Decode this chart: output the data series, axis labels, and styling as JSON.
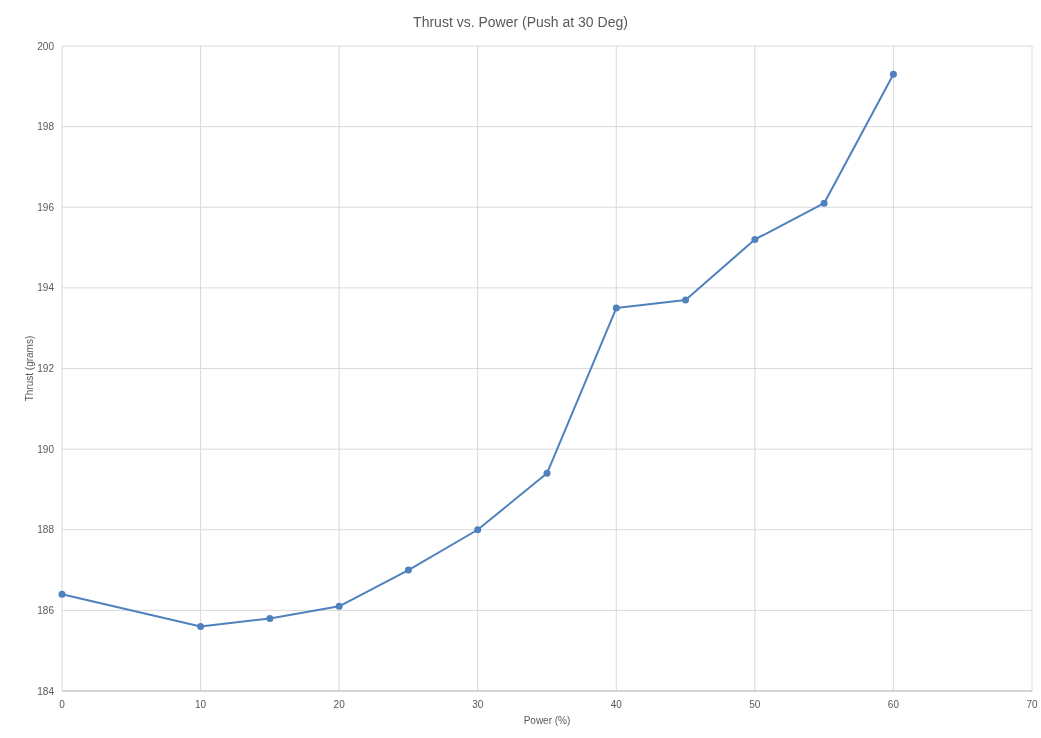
{
  "chart_data": {
    "type": "line",
    "title": "Thrust vs. Power (Push at 30 Deg)",
    "xlabel": "Power (%)",
    "ylabel": "Thrust (grams)",
    "x": [
      0,
      10,
      15,
      20,
      25,
      30,
      35,
      40,
      45,
      50,
      55,
      60
    ],
    "series": [
      {
        "color": "#4f81bd",
        "values": [
          186.4,
          185.6,
          185.8,
          186.1,
          187.0,
          188.0,
          189.4,
          193.5,
          193.7,
          195.2,
          196.1,
          199.3
        ]
      }
    ],
    "xlim": [
      0,
      70
    ],
    "xticks": [
      0,
      10,
      20,
      30,
      40,
      50,
      60,
      70
    ],
    "ylim": [
      184,
      200
    ],
    "yticks": [
      184,
      186,
      188,
      190,
      192,
      194,
      196,
      198,
      200
    ],
    "grid": true,
    "marker": "circle",
    "line_style": "solid"
  }
}
